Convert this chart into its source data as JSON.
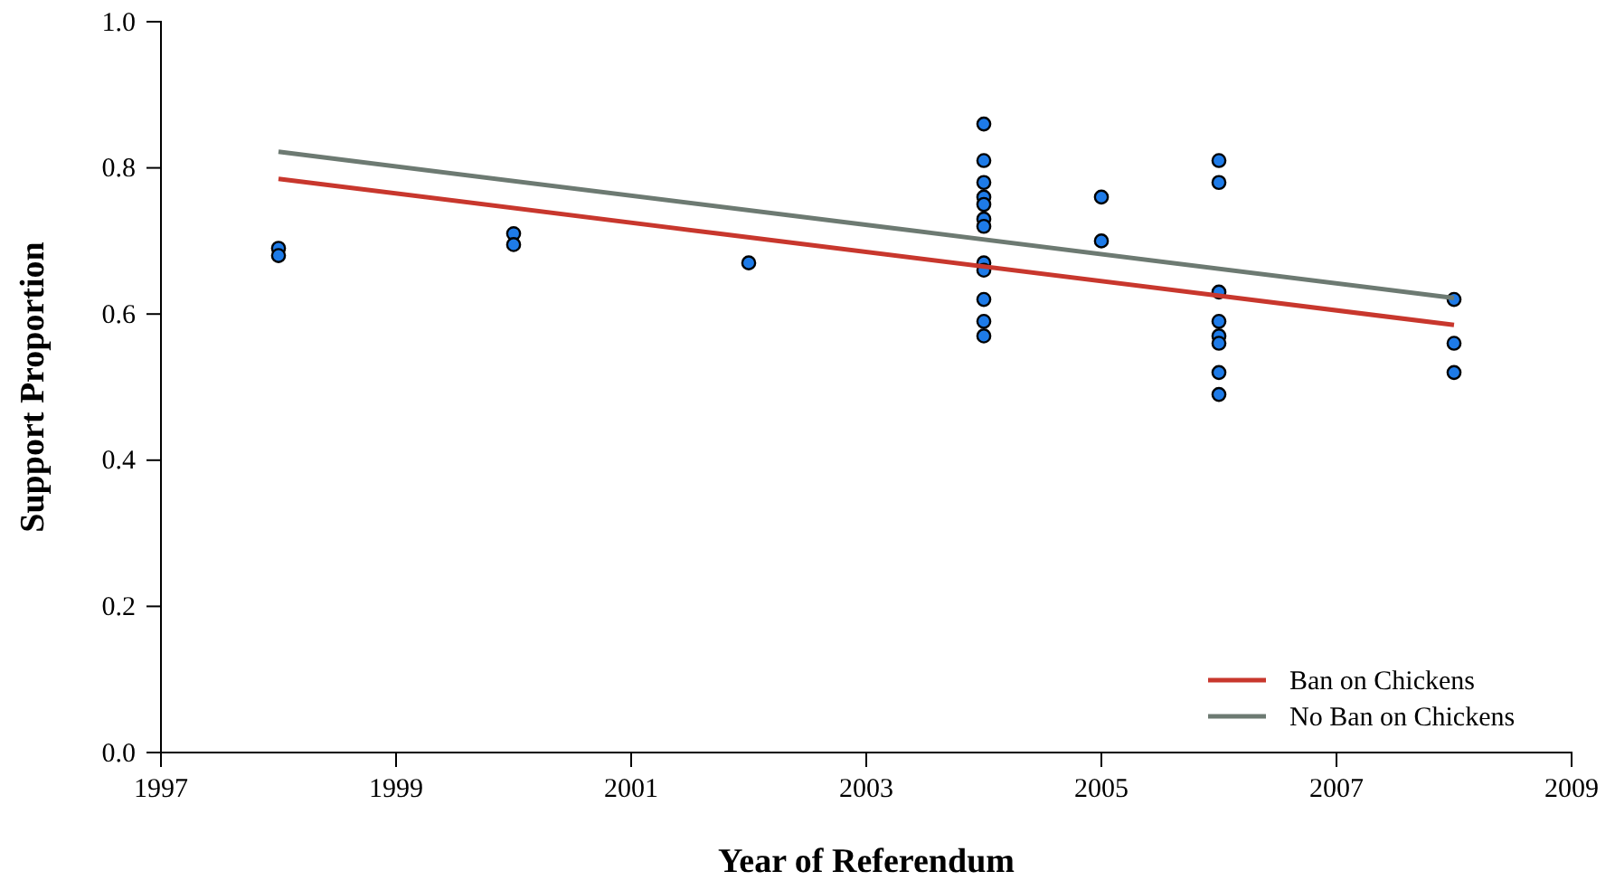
{
  "chart_data": {
    "type": "scatter",
    "xlabel": "Year of Referendum",
    "ylabel": "Support Proportion",
    "xlim": [
      1997,
      2009
    ],
    "xticks": [
      1997,
      1999,
      2001,
      2003,
      2005,
      2007,
      2009
    ],
    "ylim": [
      0,
      1
    ],
    "yticks": [
      {
        "value": 0,
        "label": "0.0"
      },
      0.2,
      0.4,
      0.6,
      0.8,
      {
        "value": 1,
        "label": "1.0"
      }
    ],
    "grid": false,
    "legend": "bottom right",
    "series": [
      {
        "marker": "circle",
        "color": "#1e7be8",
        "x": [
          1998,
          1998,
          2000,
          2000,
          2002,
          2004,
          2004,
          2004,
          2004,
          2004,
          2004,
          2004,
          2004,
          2004,
          2004,
          2004,
          2004,
          2005,
          2005,
          2006,
          2006,
          2006,
          2006,
          2006,
          2006,
          2006,
          2006,
          2008,
          2008,
          2008
        ],
        "values": [
          0.69,
          0.68,
          0.71,
          0.695,
          0.67,
          0.86,
          0.81,
          0.78,
          0.76,
          0.75,
          0.73,
          0.72,
          0.67,
          0.66,
          0.62,
          0.59,
          0.57,
          0.76,
          0.7,
          0.81,
          0.78,
          0.63,
          0.59,
          0.57,
          0.56,
          0.52,
          0.49,
          0.62,
          0.56,
          0.52
        ]
      },
      {
        "type": "line",
        "name": "Ban on Chickens",
        "marker": "none",
        "color": "#c8372d",
        "x": [
          1998,
          2008
        ],
        "values": [
          0.785,
          0.585
        ]
      },
      {
        "type": "line",
        "name": "No Ban on Chickens",
        "marker": "none",
        "color": "#6d7a72",
        "x": [
          1998,
          2008
        ],
        "values": [
          0.822,
          0.622
        ]
      }
    ]
  }
}
